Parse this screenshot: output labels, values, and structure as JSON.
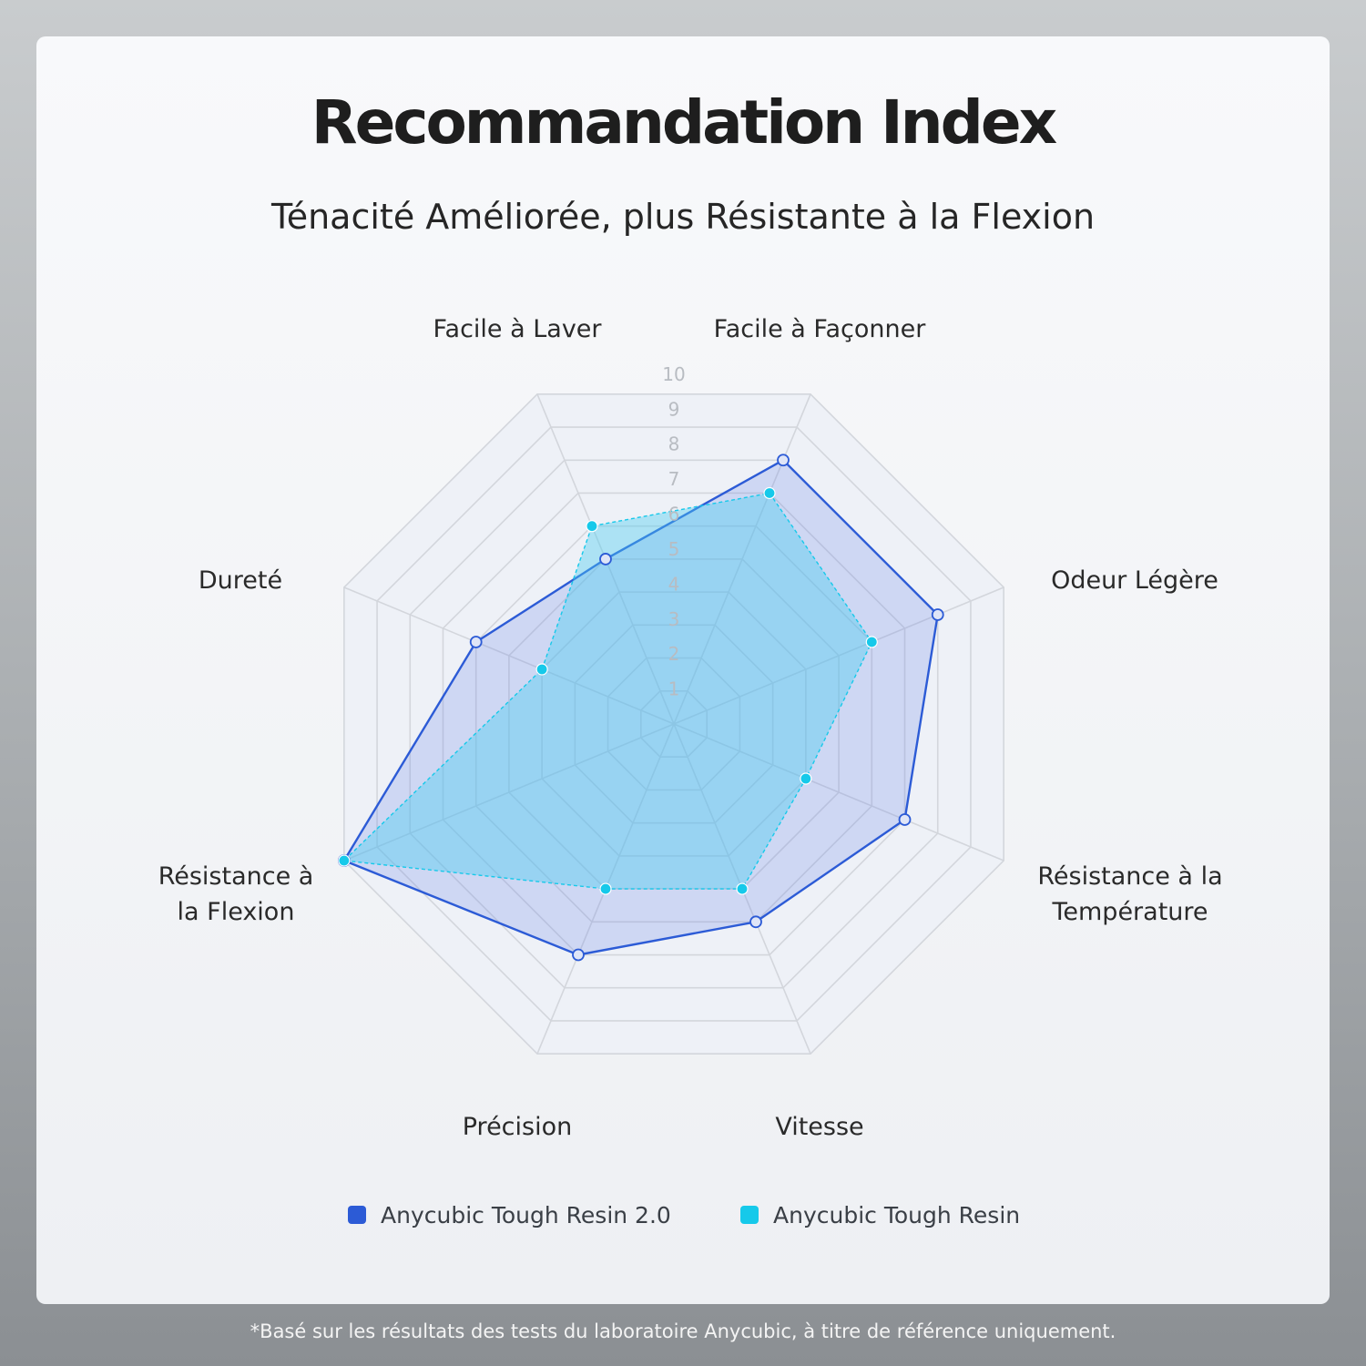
{
  "title": "Recommandation Index",
  "subtitle": "Ténacité Améliorée, plus Résistante à la Flexion",
  "footnote": "*Basé sur les résultats des tests du laboratoire Anycubic, à titre de référence uniquement.",
  "chart_data": {
    "type": "radar",
    "axes": [
      "Facile à Façonner",
      "Odeur Légère",
      "Résistance à la Température",
      "Vitesse",
      "Précision",
      "Résistance à la Flexion",
      "Dureté",
      "Facile à Laver"
    ],
    "axis_label_lines": [
      [
        "Facile à Façonner"
      ],
      [
        "Odeur Légère"
      ],
      [
        "Résistance à la",
        "Température"
      ],
      [
        "Vitesse"
      ],
      [
        "Précision"
      ],
      [
        "Résistance à",
        "la Flexion"
      ],
      [
        "Dureté"
      ],
      [
        "Facile à Laver"
      ]
    ],
    "range": [
      0,
      10
    ],
    "ticks": [
      "1",
      "2",
      "3",
      "4",
      "5",
      "6",
      "7",
      "8",
      "9",
      "10"
    ],
    "series": [
      {
        "name": "Anycubic Tough Resin 2.0",
        "color": "#2c5bd6",
        "values": [
          8,
          8,
          7,
          6,
          7,
          10,
          6,
          5
        ]
      },
      {
        "name": "Anycubic Tough Resin",
        "color": "#16c9ea",
        "values": [
          7,
          6,
          4,
          5,
          5,
          10,
          4,
          6
        ]
      }
    ]
  }
}
